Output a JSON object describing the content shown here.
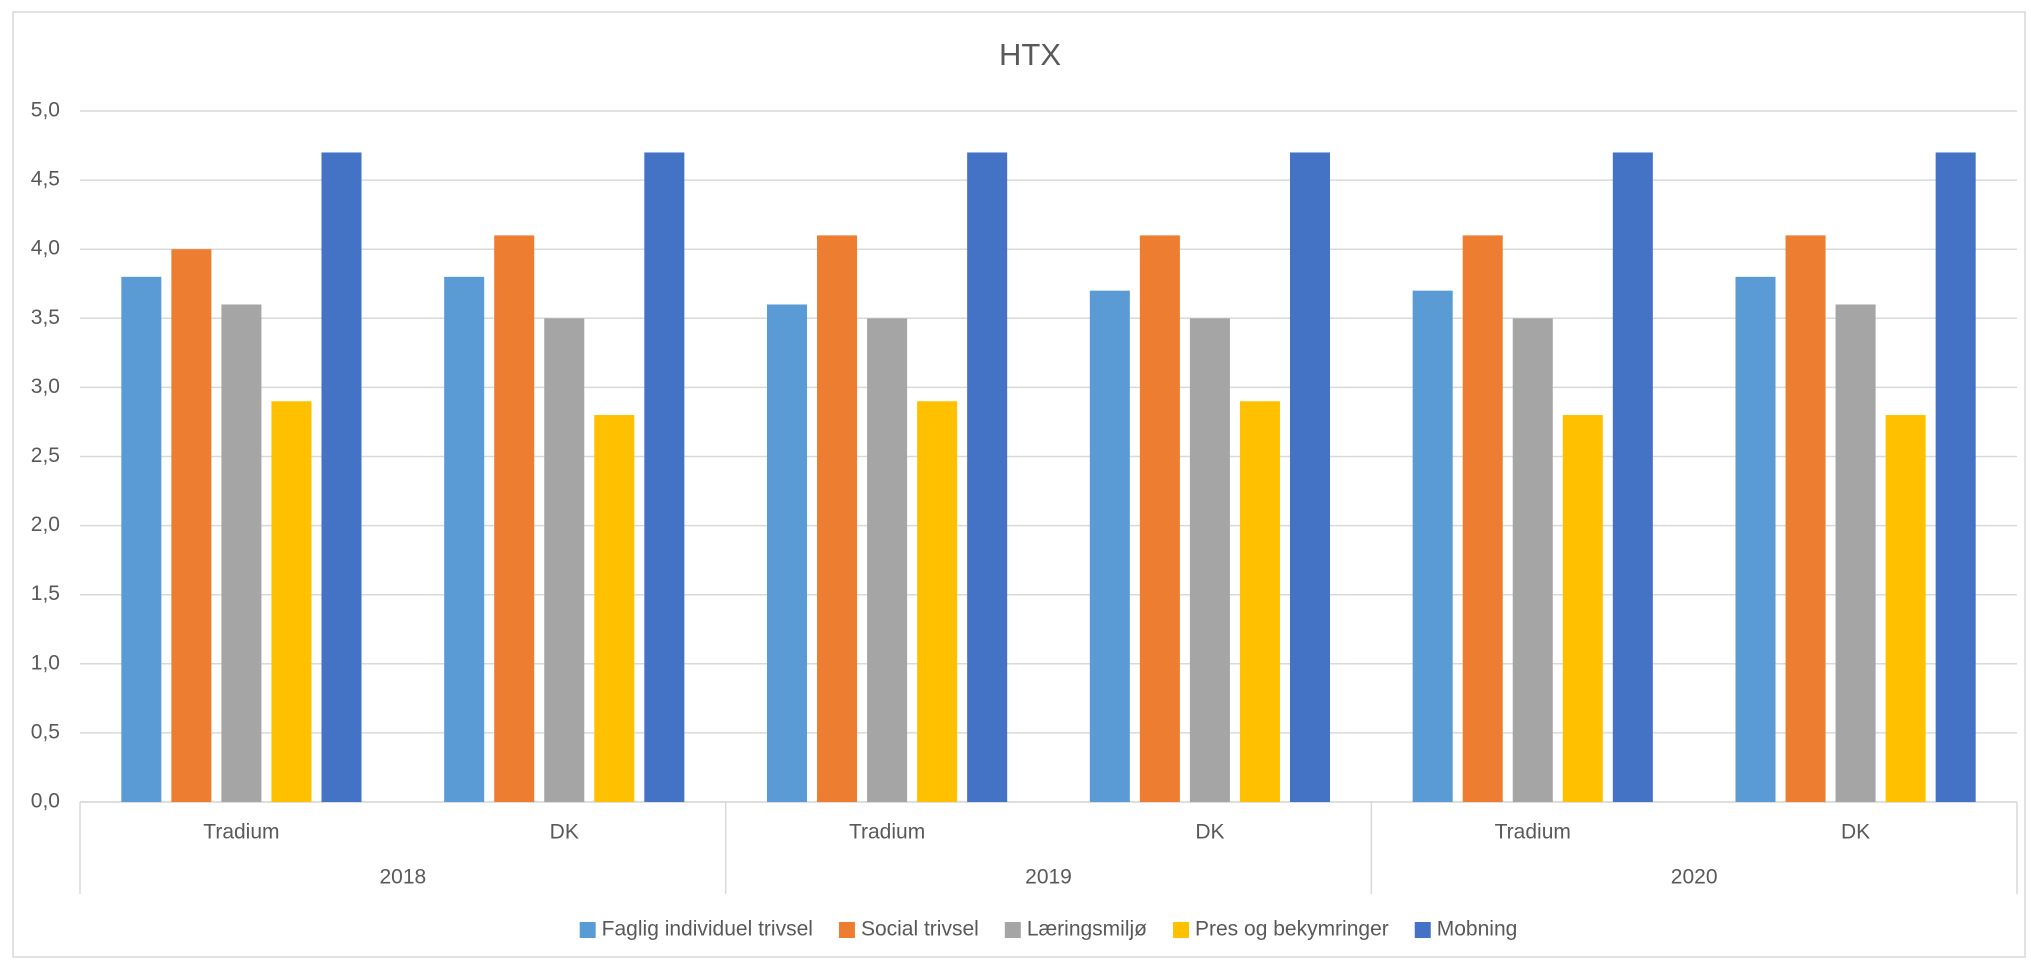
{
  "chart_data": {
    "type": "bar",
    "title": "HTX",
    "categories": [
      "Tradium",
      "DK",
      "Tradium",
      "DK",
      "Tradium",
      "DK"
    ],
    "groups": [
      "2018",
      "2019",
      "2020"
    ],
    "series": [
      {
        "name": "Faglig individuel trivsel",
        "color": "#5b9bd5",
        "values": [
          3.8,
          3.8,
          3.6,
          3.7,
          3.7,
          3.8
        ]
      },
      {
        "name": "Social trivsel",
        "color": "#ed7d31",
        "values": [
          4.0,
          4.1,
          4.1,
          4.1,
          4.1,
          4.1
        ]
      },
      {
        "name": "Læringsmiljø",
        "color": "#a5a5a5",
        "values": [
          3.6,
          3.5,
          3.5,
          3.5,
          3.5,
          3.6
        ]
      },
      {
        "name": "Pres og bekymringer",
        "color": "#ffc000",
        "values": [
          2.9,
          2.8,
          2.9,
          2.9,
          2.8,
          2.8
        ]
      },
      {
        "name": "Mobning",
        "color": "#4472c4",
        "values": [
          4.7,
          4.7,
          4.7,
          4.7,
          4.7,
          4.7
        ]
      }
    ],
    "ylim": [
      0,
      5
    ],
    "yticks": [
      {
        "value": 0,
        "label": "0,0"
      },
      {
        "value": 0.5,
        "label": "0,5"
      },
      {
        "value": 1,
        "label": "1,0"
      },
      {
        "value": 1.5,
        "label": "1,5"
      },
      {
        "value": 2,
        "label": "2,0"
      },
      {
        "value": 2.5,
        "label": "2,5"
      },
      {
        "value": 3,
        "label": "3,0"
      },
      {
        "value": 3.5,
        "label": "3,5"
      },
      {
        "value": 4,
        "label": "4,0"
      },
      {
        "value": 4.5,
        "label": "4,5"
      },
      {
        "value": 5,
        "label": "5,0"
      }
    ],
    "grid": true,
    "legend": "bottom"
  }
}
